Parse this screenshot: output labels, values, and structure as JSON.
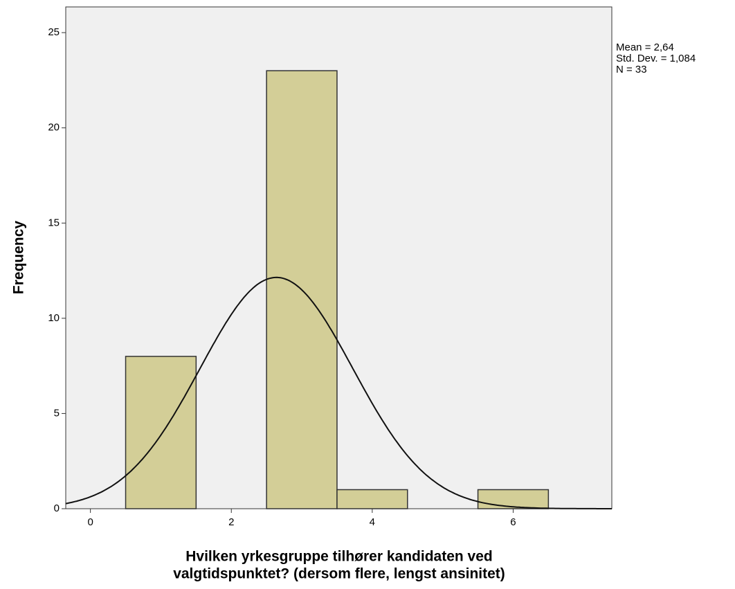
{
  "chart_data": {
    "type": "histogram",
    "bins": [
      0.5,
      1.5,
      2.5,
      3.5,
      4.5,
      5.5,
      6.5
    ],
    "values": [
      8,
      0,
      23,
      1,
      0,
      1
    ],
    "color": "#d3ce97",
    "xlim": [
      -0.35,
      7.4
    ],
    "xticks": [
      0,
      2,
      4,
      6
    ],
    "ylim": [
      0,
      26.35
    ],
    "yticks": [
      0,
      5,
      10,
      15,
      20,
      25
    ],
    "ylabel": "Frequency",
    "xlabel": [
      "Hvilken yrkesgruppe tilhører kandidaten ved",
      "valgtidspunktet? (dersom flere, lengst ansinitet)"
    ],
    "stats": {
      "mean": {
        "value": 2.64,
        "label": "Mean = 2,64"
      },
      "std_dev": {
        "value": 1.084,
        "label": "Std. Dev. = 1,084"
      },
      "n": {
        "value": 33,
        "label": "N = 33"
      }
    },
    "normal_curve": true
  }
}
